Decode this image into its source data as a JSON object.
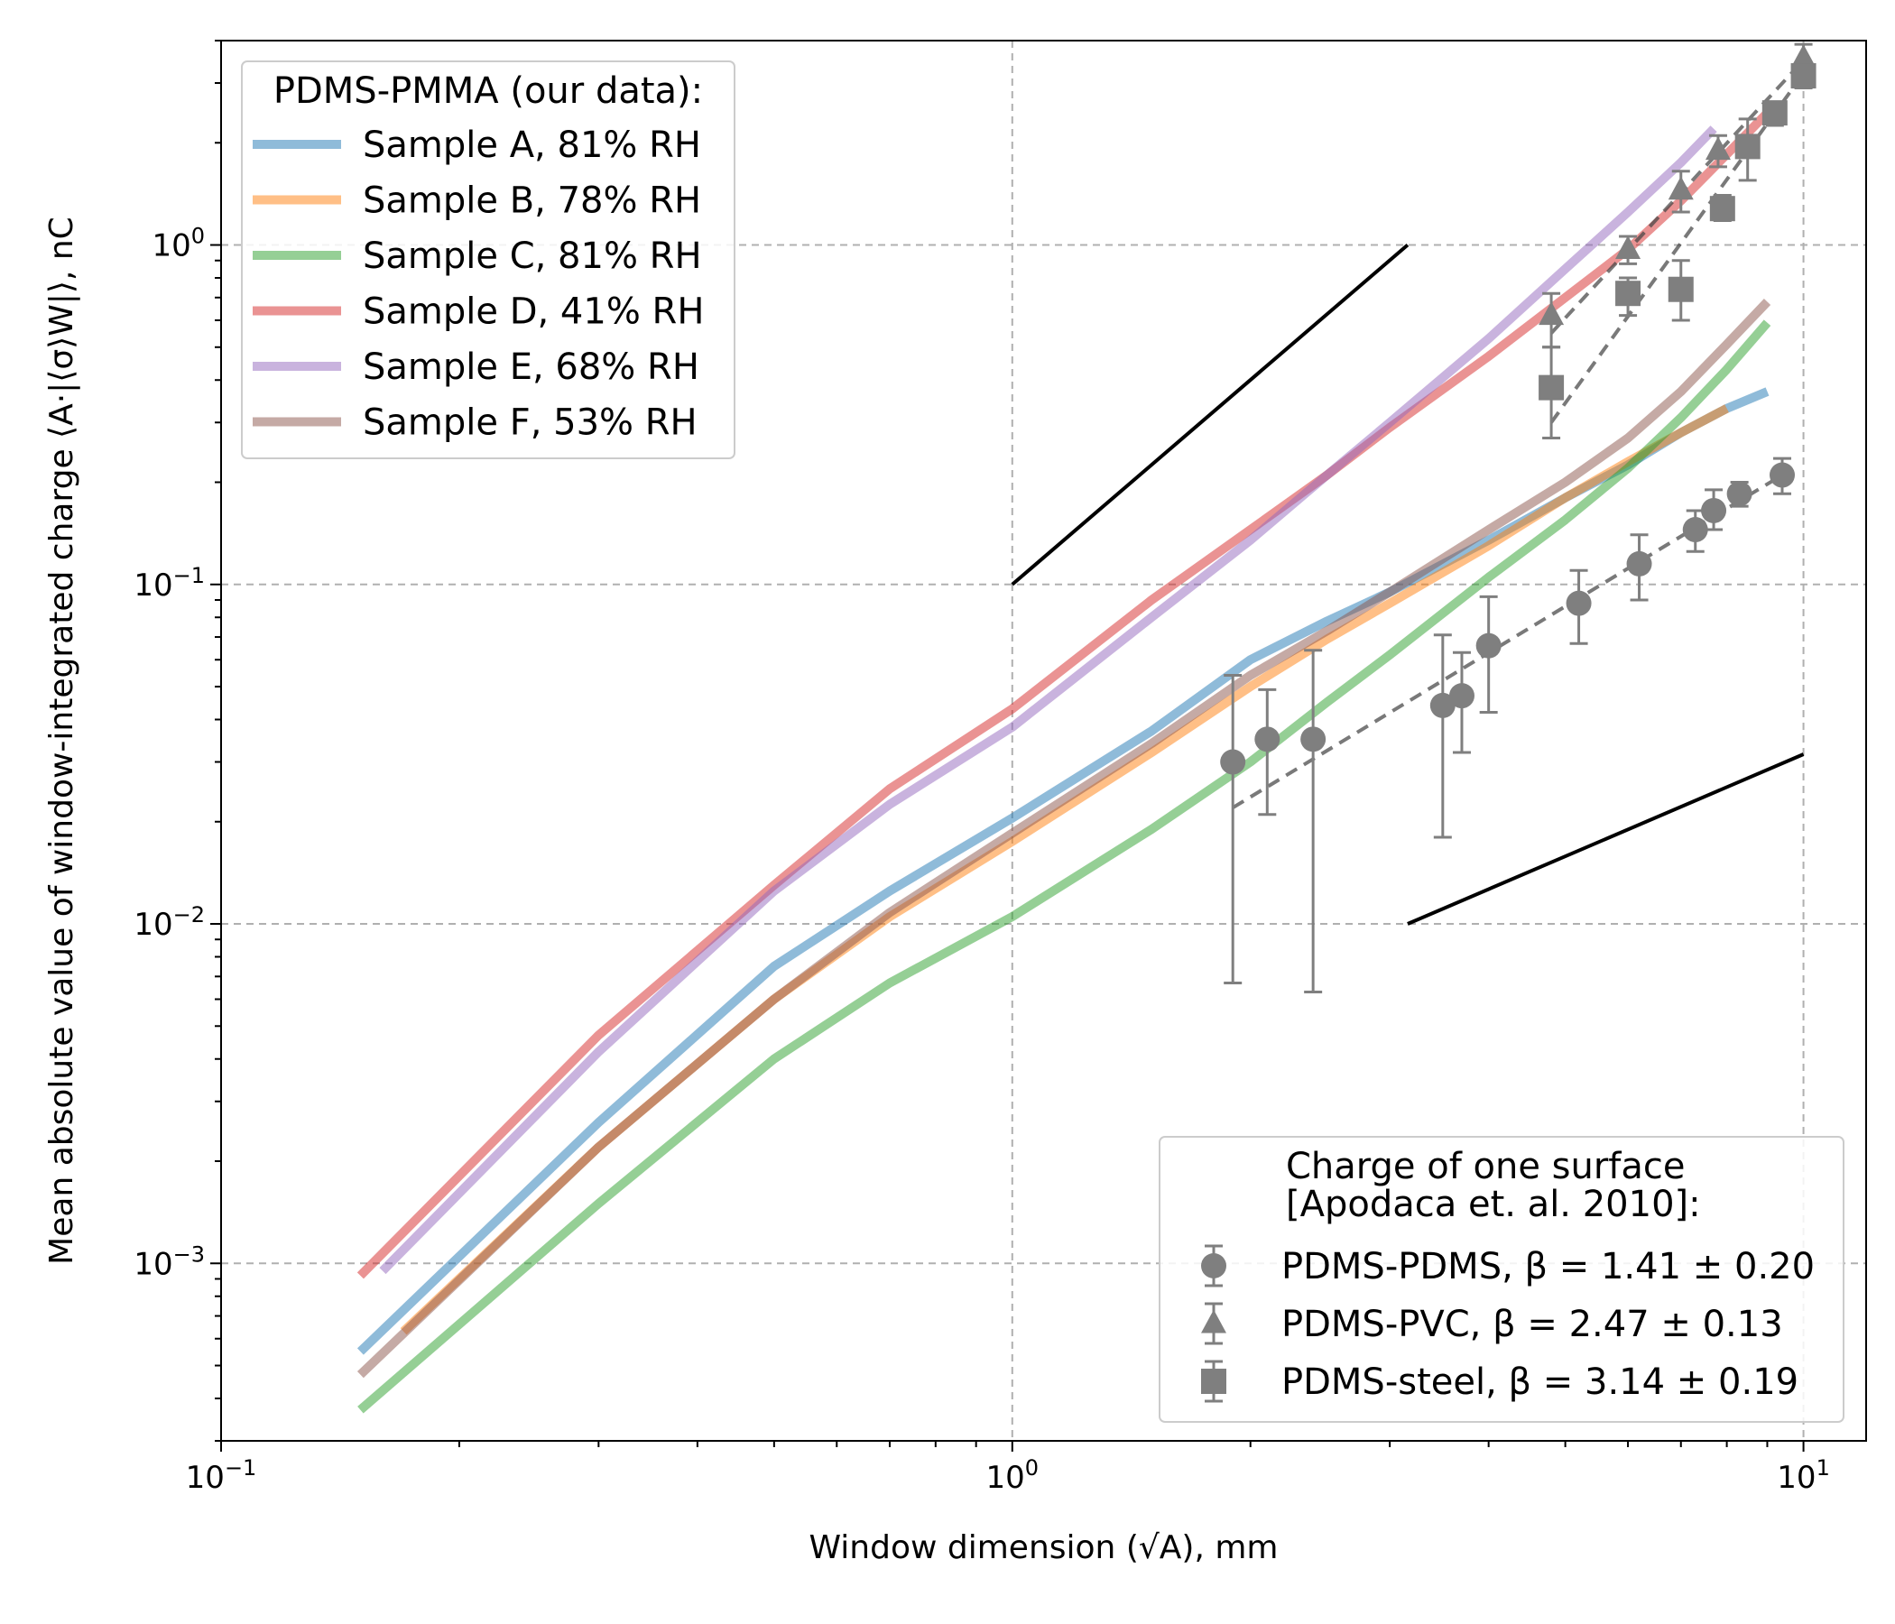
{
  "chart_data": {
    "type": "line",
    "xscale": "log",
    "yscale": "log",
    "xlim": [
      0.1,
      12
    ],
    "ylim": [
      0.0003,
      4
    ],
    "xlabel": "Window dimension (√A), mm",
    "ylabel": "Mean absolute value of window-integrated charge ⟨A·|⟨σ⟩W|⟩, nC",
    "xticks": [
      {
        "value": 0.1,
        "base": "10",
        "exp": "−1"
      },
      {
        "value": 1,
        "base": "10",
        "exp": "0"
      },
      {
        "value": 10,
        "base": "10",
        "exp": "1"
      }
    ],
    "yticks": [
      {
        "value": 0.001,
        "base": "10",
        "exp": "−3"
      },
      {
        "value": 0.01,
        "base": "10",
        "exp": "−2"
      },
      {
        "value": 0.1,
        "base": "10",
        "exp": "−1"
      },
      {
        "value": 1,
        "base": "10",
        "exp": "0"
      }
    ],
    "grid": true,
    "legend_our_title": "PDMS-PMMA (our data):",
    "legend_lit_title": [
      "Charge of one surface",
      "[Apodaca et. al. 2010]:"
    ],
    "legend_our_placement": "top-left",
    "legend_lit_placement": "bottom-right",
    "series": [
      {
        "name": "Sample A, 81% RH",
        "color": "#1f77b4",
        "x": [
          0.15,
          0.3,
          0.5,
          0.7,
          1.0,
          1.5,
          2.0,
          2.5,
          3.0,
          4.0,
          5.0,
          6.0,
          7.0,
          8.0,
          9.0
        ],
        "y": [
          0.00055,
          0.0026,
          0.0075,
          0.0125,
          0.0205,
          0.037,
          0.06,
          0.078,
          0.095,
          0.135,
          0.18,
          0.225,
          0.28,
          0.33,
          0.37
        ]
      },
      {
        "name": "Sample B, 78% RH",
        "color": "#ff7f0e",
        "x": [
          0.17,
          0.3,
          0.5,
          0.7,
          1.0,
          1.5,
          2.0,
          2.5,
          3.0,
          4.0,
          5.0,
          6.0,
          7.0,
          8.0
        ],
        "y": [
          0.00063,
          0.0022,
          0.006,
          0.0105,
          0.0175,
          0.032,
          0.05,
          0.069,
          0.088,
          0.13,
          0.18,
          0.23,
          0.28,
          0.33
        ]
      },
      {
        "name": "Sample C, 81% RH",
        "color": "#2ca02c",
        "x": [
          0.15,
          0.3,
          0.5,
          0.7,
          1.0,
          1.5,
          2.0,
          2.5,
          3.0,
          4.0,
          5.0,
          6.0,
          7.0,
          8.0,
          9.0
        ],
        "y": [
          0.00037,
          0.0015,
          0.004,
          0.0067,
          0.0105,
          0.019,
          0.03,
          0.045,
          0.062,
          0.105,
          0.155,
          0.22,
          0.31,
          0.43,
          0.59
        ]
      },
      {
        "name": "Sample D, 41% RH",
        "color": "#d62728",
        "x": [
          0.15,
          0.3,
          0.5,
          0.7,
          1.0,
          1.5,
          2.0,
          2.5,
          3.0,
          4.0,
          5.0,
          6.0,
          7.0,
          8.0,
          9.0
        ],
        "y": [
          0.00092,
          0.0047,
          0.013,
          0.025,
          0.043,
          0.09,
          0.145,
          0.21,
          0.29,
          0.47,
          0.7,
          0.97,
          1.35,
          1.85,
          2.45
        ]
      },
      {
        "name": "Sample E, 68% RH",
        "color": "#9467bd",
        "x": [
          0.16,
          0.3,
          0.5,
          0.7,
          1.0,
          1.5,
          2.0,
          2.5,
          3.0,
          4.0,
          5.0,
          6.0,
          7.0,
          7.7
        ],
        "y": [
          0.00095,
          0.0042,
          0.0125,
          0.0225,
          0.038,
          0.08,
          0.135,
          0.21,
          0.3,
          0.53,
          0.85,
          1.25,
          1.75,
          2.2
        ]
      },
      {
        "name": "Sample F, 53% RH",
        "color": "#8c564b",
        "x": [
          0.15,
          0.3,
          0.5,
          0.7,
          1.0,
          1.5,
          2.0,
          2.5,
          3.0,
          4.0,
          5.0,
          6.0,
          7.0,
          8.0,
          9.0
        ],
        "y": [
          0.00047,
          0.0022,
          0.006,
          0.0108,
          0.0185,
          0.034,
          0.054,
          0.073,
          0.095,
          0.145,
          0.2,
          0.27,
          0.37,
          0.51,
          0.68
        ]
      }
    ],
    "literature": [
      {
        "name": "PDMS-PDMS, β = 1.41 ± 0.20",
        "marker": "circle",
        "points": [
          {
            "x": 1.9,
            "y": 0.03,
            "lo": 0.0067,
            "hi": 0.054
          },
          {
            "x": 2.1,
            "y": 0.035,
            "lo": 0.021,
            "hi": 0.049
          },
          {
            "x": 2.4,
            "y": 0.035,
            "lo": 0.0063,
            "hi": 0.064
          },
          {
            "x": 3.5,
            "y": 0.044,
            "lo": 0.018,
            "hi": 0.071
          },
          {
            "x": 3.7,
            "y": 0.047,
            "lo": 0.032,
            "hi": 0.063
          },
          {
            "x": 4.0,
            "y": 0.066,
            "lo": 0.042,
            "hi": 0.092
          },
          {
            "x": 5.2,
            "y": 0.088,
            "lo": 0.067,
            "hi": 0.11
          },
          {
            "x": 6.2,
            "y": 0.115,
            "lo": 0.09,
            "hi": 0.14
          },
          {
            "x": 7.3,
            "y": 0.145,
            "lo": 0.125,
            "hi": 0.165
          },
          {
            "x": 7.7,
            "y": 0.165,
            "lo": 0.145,
            "hi": 0.19
          },
          {
            "x": 8.3,
            "y": 0.185,
            "lo": 0.17,
            "hi": 0.2
          },
          {
            "x": 9.4,
            "y": 0.21,
            "lo": 0.185,
            "hi": 0.235
          }
        ],
        "fit": {
          "x": [
            1.9,
            9.4
          ],
          "y": [
            0.022,
            0.21
          ]
        }
      },
      {
        "name": "PDMS-PVC, β = 2.47 ± 0.13",
        "marker": "triangle",
        "points": [
          {
            "x": 4.8,
            "y": 0.62,
            "lo": 0.5,
            "hi": 0.72
          },
          {
            "x": 6.0,
            "y": 0.97,
            "lo": 0.88,
            "hi": 1.06
          },
          {
            "x": 7.0,
            "y": 1.45,
            "lo": 1.25,
            "hi": 1.65
          },
          {
            "x": 7.8,
            "y": 1.9,
            "lo": 1.7,
            "hi": 2.1
          },
          {
            "x": 10.0,
            "y": 3.55,
            "lo": 3.3,
            "hi": 3.9
          }
        ],
        "fit": {
          "x": [
            4.8,
            10.0
          ],
          "y": [
            0.55,
            3.5
          ]
        }
      },
      {
        "name": "PDMS-steel, β = 3.14 ± 0.19",
        "marker": "square",
        "points": [
          {
            "x": 4.8,
            "y": 0.38,
            "lo": 0.27,
            "hi": 0.5
          },
          {
            "x": 6.0,
            "y": 0.72,
            "lo": 0.62,
            "hi": 0.8
          },
          {
            "x": 7.0,
            "y": 0.74,
            "lo": 0.6,
            "hi": 0.9
          },
          {
            "x": 7.9,
            "y": 1.28,
            "lo": 1.18,
            "hi": 1.4
          },
          {
            "x": 8.5,
            "y": 1.95,
            "lo": 1.55,
            "hi": 2.35
          },
          {
            "x": 9.2,
            "y": 2.45,
            "lo": 2.25,
            "hi": 2.6
          },
          {
            "x": 10.0,
            "y": 3.15,
            "lo": 2.9,
            "hi": 3.4
          }
        ],
        "fit": {
          "x": [
            4.8,
            10.0
          ],
          "y": [
            0.3,
            3.2
          ]
        }
      }
    ],
    "reference_lines": [
      {
        "x": [
          1.0,
          3.16
        ],
        "y": [
          0.1,
          1.0
        ]
      },
      {
        "x": [
          3.16,
          10.0
        ],
        "y": [
          0.01,
          0.0316
        ]
      }
    ]
  }
}
